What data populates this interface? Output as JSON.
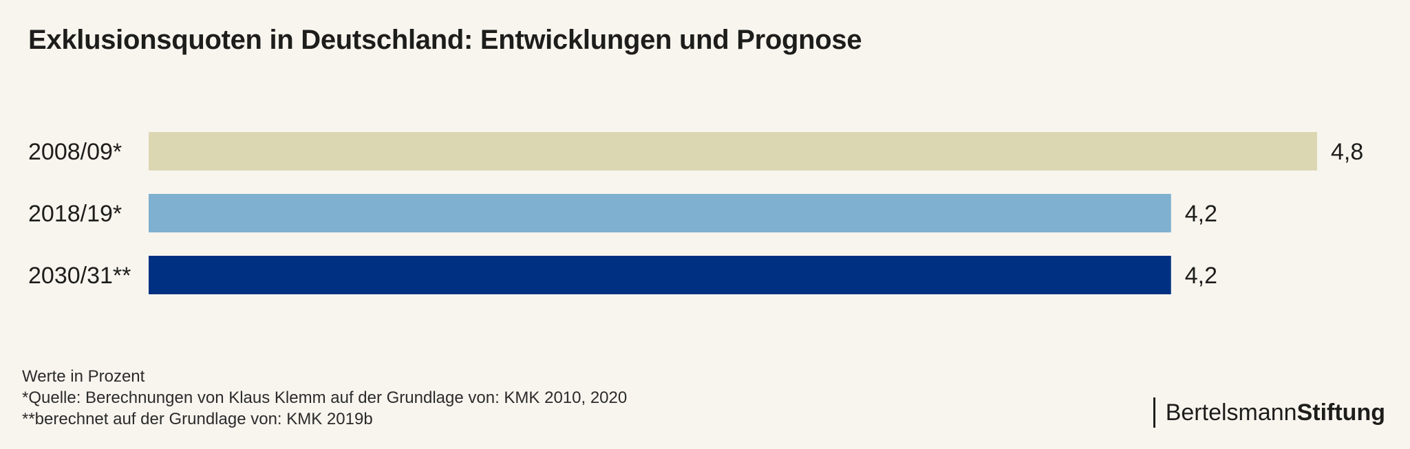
{
  "chart_data": {
    "type": "bar",
    "orientation": "horizontal",
    "title": "Exklusionsquoten in Deutschland: Entwicklungen und Prognose",
    "categories": [
      "2008/09*",
      "2018/19*",
      "2030/31**"
    ],
    "values": [
      4.8,
      4.2,
      4.2
    ],
    "value_labels": [
      "4,8",
      "4,2",
      "4,2"
    ],
    "colors": [
      "#dcd7b3",
      "#7fb0cf",
      "#003082"
    ],
    "xlim": [
      0,
      4.8
    ],
    "xlabel": "",
    "ylabel": "",
    "grid": false
  },
  "footnotes": {
    "unit": "Werte in Prozent",
    "source1": "*Quelle: Berechnungen von Klaus Klemm auf der Grundlage von: KMK 2010, 2020",
    "source2": "**berechnet auf der Grundlage von: KMK 2019b"
  },
  "logo": {
    "part1": "Bertelsmann",
    "part2": "Stiftung"
  }
}
